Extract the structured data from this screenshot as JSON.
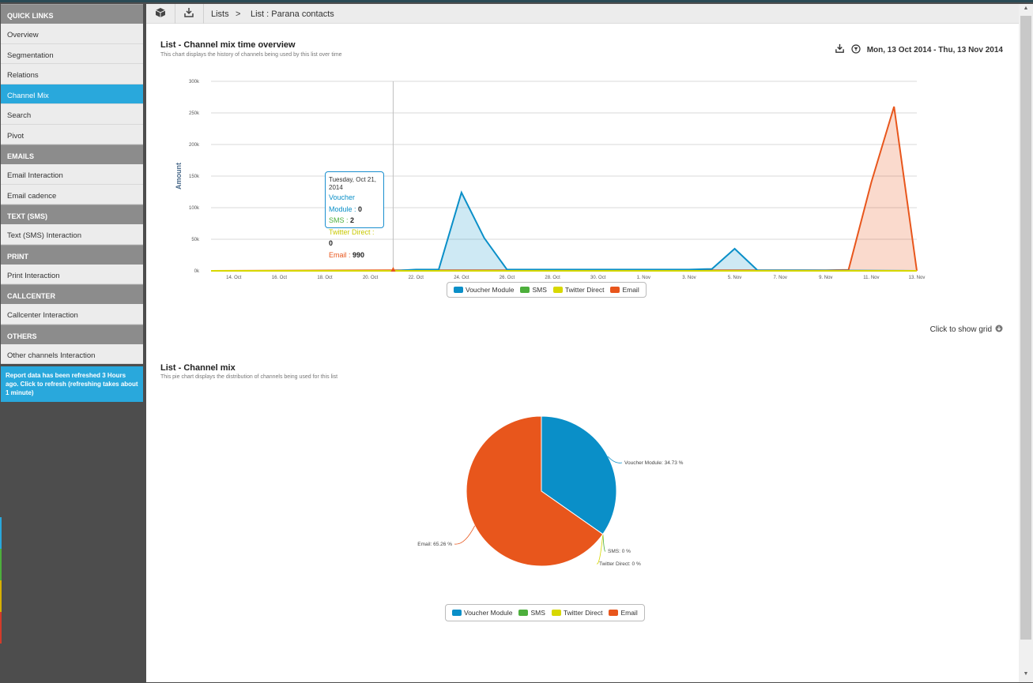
{
  "sidebar": {
    "groups": [
      {
        "header": "QUICK LINKS",
        "items": [
          "Overview",
          "Segmentation",
          "Relations",
          "Channel Mix",
          "Search",
          "Pivot"
        ]
      },
      {
        "header": "EMAILS",
        "items": [
          "Email Interaction",
          "Email cadence"
        ]
      },
      {
        "header": "TEXT (SMS)",
        "items": [
          "Text (SMS) Interaction"
        ]
      },
      {
        "header": "PRINT",
        "items": [
          "Print Interaction"
        ]
      },
      {
        "header": "CALLCENTER",
        "items": [
          "Callcenter Interaction"
        ]
      },
      {
        "header": "OTHERS",
        "items": [
          "Other channels Interaction"
        ]
      }
    ],
    "active_item": "Channel Mix",
    "refresh_note": "Report data has been refreshed 3 Hours ago. Click        to refresh (refreshing takes about 1 minute)"
  },
  "breadcrumb": {
    "item1": "Lists",
    "separator": ">",
    "item2": "List : Parana contacts",
    "icons": [
      "cube-icon",
      "download-tray-icon"
    ]
  },
  "timechart": {
    "title": "List - Channel mix time overview",
    "subtitle": "This chart displays the history of channels being used by this list over time",
    "daterange": "Mon, 13 Oct 2014 - Thu, 13 Nov 2014",
    "show_grid": "Click to show grid"
  },
  "tooltip": {
    "date": "Tuesday, Oct 21, 2014",
    "rows": [
      {
        "label": "Voucher Module",
        "value": "0"
      },
      {
        "label": "SMS",
        "value": "2"
      },
      {
        "label": "Twitter Direct",
        "value": "0"
      },
      {
        "label": "Email",
        "value": "990"
      }
    ]
  },
  "piechart": {
    "title": "List - Channel mix",
    "subtitle": "This pie chart displays the distribution of channels being used for this list"
  },
  "colors": {
    "voucher": "#0a8fc8",
    "sms": "#4daf3c",
    "twitter": "#d8d800",
    "email": "#e8561c",
    "active": "#29a8dc"
  },
  "chart_data": [
    {
      "type": "area",
      "ylabel": "Amount",
      "xlabel": "",
      "ylim": [
        0,
        300000
      ],
      "yticks": [
        "0k",
        "50k",
        "100k",
        "150k",
        "200k",
        "250k",
        "300k"
      ],
      "x_ticks": [
        "14. Oct",
        "16. Oct",
        "18. Oct",
        "20. Oct",
        "22. Oct",
        "24. Oct",
        "26. Oct",
        "28. Oct",
        "30. Oct",
        "1. Nov",
        "3. Nov",
        "5. Nov",
        "7. Nov",
        "9. Nov",
        "11. Nov",
        "13. Nov"
      ],
      "x_start": "2014-10-13",
      "x_end": "2014-11-13",
      "legend": "bottom",
      "series": [
        {
          "name": "Voucher Module",
          "points": [
            [
              "2014-10-13",
              0
            ],
            [
              "2014-10-21",
              0
            ],
            [
              "2014-10-22",
              2000
            ],
            [
              "2014-10-23",
              2000
            ],
            [
              "2014-10-24",
              124000
            ],
            [
              "2014-10-25",
              52000
            ],
            [
              "2014-10-26",
              2000
            ],
            [
              "2014-11-03",
              2000
            ],
            [
              "2014-11-04",
              3000
            ],
            [
              "2014-11-05",
              35000
            ],
            [
              "2014-11-06",
              1000
            ],
            [
              "2014-11-13",
              0
            ]
          ]
        },
        {
          "name": "SMS",
          "points": [
            [
              "2014-10-13",
              0
            ],
            [
              "2014-11-13",
              0
            ]
          ]
        },
        {
          "name": "Twitter Direct",
          "points": [
            [
              "2014-10-13",
              0
            ],
            [
              "2014-11-13",
              0
            ]
          ]
        },
        {
          "name": "Email",
          "points": [
            [
              "2014-10-13",
              0
            ],
            [
              "2014-10-21",
              990
            ],
            [
              "2014-11-09",
              1000
            ],
            [
              "2014-11-10",
              1500
            ],
            [
              "2014-11-11",
              140000
            ],
            [
              "2014-11-12",
              260000
            ],
            [
              "2014-11-13",
              0
            ]
          ]
        }
      ]
    },
    {
      "type": "pie",
      "legend": "bottom",
      "slices": [
        {
          "name": "Voucher Module",
          "value": 34.73,
          "label": "Voucher Module: 34.73 %"
        },
        {
          "name": "SMS",
          "value": 0,
          "label": "SMS: 0 %"
        },
        {
          "name": "Twitter Direct",
          "value": 0,
          "label": "Twitter Direct: 0 %"
        },
        {
          "name": "Email",
          "value": 65.26,
          "label": "Email: 65.26 %"
        }
      ]
    }
  ]
}
